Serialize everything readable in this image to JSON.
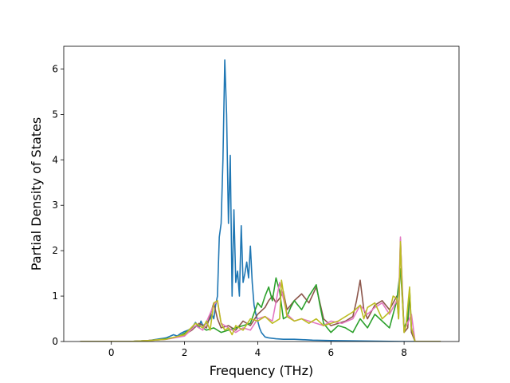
{
  "chart_data": {
    "type": "line",
    "title": "",
    "xlabel": "Frequency (THz)",
    "ylabel": "Partial Density of States",
    "xlim": [
      -1.3,
      9.5
    ],
    "ylim": [
      0,
      6.5
    ],
    "xticks": [
      "0",
      "2",
      "4",
      "6",
      "8"
    ],
    "yticks": [
      "0",
      "1",
      "2",
      "3",
      "4",
      "5",
      "6"
    ],
    "grid": false,
    "legend": "none",
    "series": [
      {
        "color": "#1f77b4",
        "x": [
          -0.85,
          0.5,
          1.0,
          1.5,
          1.7,
          1.8,
          1.9,
          2.0,
          2.1,
          2.2,
          2.3,
          2.4,
          2.45,
          2.5,
          2.6,
          2.7,
          2.75,
          2.8,
          2.85,
          2.9,
          2.95,
          3.0,
          3.05,
          3.1,
          3.15,
          3.2,
          3.25,
          3.3,
          3.35,
          3.4,
          3.45,
          3.5,
          3.55,
          3.6,
          3.65,
          3.7,
          3.75,
          3.8,
          3.85,
          3.9,
          3.95,
          4.0,
          4.05,
          4.1,
          4.15,
          4.2,
          4.3,
          4.5,
          4.7,
          5.0,
          5.5,
          6.0,
          7.0,
          8.0,
          9.0
        ],
        "y": [
          0,
          0,
          0.02,
          0.08,
          0.15,
          0.12,
          0.18,
          0.22,
          0.25,
          0.3,
          0.42,
          0.3,
          0.45,
          0.35,
          0.4,
          0.5,
          0.6,
          0.5,
          0.8,
          1.0,
          2.3,
          2.6,
          4.0,
          6.2,
          5.0,
          2.6,
          4.1,
          1.0,
          2.9,
          1.3,
          1.55,
          1.0,
          2.55,
          1.3,
          1.5,
          1.75,
          1.4,
          2.1,
          1.3,
          0.8,
          0.6,
          0.45,
          0.3,
          0.2,
          0.15,
          0.1,
          0.08,
          0.06,
          0.05,
          0.05,
          0.03,
          0.02,
          0.01,
          0,
          0
        ]
      },
      {
        "color": "#8c564b",
        "x": [
          -0.85,
          0.5,
          1.0,
          1.5,
          1.8,
          2.0,
          2.2,
          2.4,
          2.6,
          2.8,
          2.9,
          3.0,
          3.2,
          3.4,
          3.6,
          3.8,
          4.0,
          4.2,
          4.3,
          4.4,
          4.5,
          4.6,
          4.7,
          4.8,
          5.0,
          5.2,
          5.4,
          5.6,
          5.8,
          6.0,
          6.2,
          6.4,
          6.6,
          6.7,
          6.8,
          6.9,
          7.0,
          7.2,
          7.4,
          7.6,
          7.8,
          7.85,
          7.9,
          7.95,
          8.0,
          8.1,
          8.15,
          8.2,
          8.3,
          9.0
        ],
        "y": [
          0,
          0,
          0.02,
          0.05,
          0.1,
          0.15,
          0.25,
          0.4,
          0.3,
          0.85,
          0.5,
          0.3,
          0.35,
          0.25,
          0.45,
          0.35,
          0.6,
          0.75,
          0.9,
          1.0,
          0.85,
          0.95,
          1.1,
          0.7,
          0.9,
          1.05,
          0.85,
          1.2,
          0.5,
          0.35,
          0.4,
          0.45,
          0.55,
          0.9,
          1.35,
          0.7,
          0.5,
          0.8,
          0.9,
          0.7,
          1.0,
          0.5,
          2.25,
          1.2,
          0.2,
          0.3,
          1.1,
          0.2,
          0,
          0
        ]
      },
      {
        "color": "#2ca02c",
        "x": [
          -0.85,
          0.5,
          1.0,
          1.5,
          1.8,
          2.0,
          2.2,
          2.4,
          2.6,
          2.8,
          3.0,
          3.2,
          3.4,
          3.6,
          3.8,
          4.0,
          4.1,
          4.2,
          4.3,
          4.4,
          4.5,
          4.6,
          4.7,
          4.8,
          4.9,
          5.0,
          5.2,
          5.4,
          5.6,
          5.7,
          5.8,
          6.0,
          6.2,
          6.4,
          6.6,
          6.8,
          7.0,
          7.2,
          7.4,
          7.6,
          7.8,
          7.9,
          8.0,
          8.1,
          8.15,
          8.2,
          8.3,
          9.0
        ],
        "y": [
          0,
          0,
          0.02,
          0.06,
          0.1,
          0.18,
          0.3,
          0.35,
          0.25,
          0.3,
          0.2,
          0.25,
          0.3,
          0.35,
          0.4,
          0.85,
          0.75,
          1.0,
          1.2,
          0.9,
          1.4,
          1.1,
          0.5,
          0.55,
          0.75,
          0.9,
          0.7,
          1.0,
          1.25,
          0.8,
          0.4,
          0.2,
          0.35,
          0.3,
          0.2,
          0.5,
          0.3,
          0.6,
          0.45,
          0.3,
          0.9,
          1.6,
          0.3,
          0.5,
          1.15,
          0.3,
          0,
          0
        ]
      },
      {
        "color": "#e377c2",
        "x": [
          -0.85,
          0.5,
          1.0,
          1.5,
          2.0,
          2.3,
          2.5,
          2.8,
          2.9,
          3.0,
          3.2,
          3.4,
          3.6,
          3.8,
          4.0,
          4.2,
          4.4,
          4.6,
          4.8,
          5.0,
          5.2,
          5.4,
          5.6,
          5.8,
          6.0,
          6.3,
          6.6,
          6.8,
          7.0,
          7.2,
          7.4,
          7.6,
          7.8,
          7.85,
          7.9,
          7.95,
          8.0,
          8.1,
          8.2,
          8.3,
          9.0
        ],
        "y": [
          0,
          0,
          0.02,
          0.05,
          0.12,
          0.35,
          0.25,
          0.8,
          0.9,
          0.4,
          0.3,
          0.2,
          0.3,
          0.25,
          0.5,
          0.55,
          0.45,
          1.3,
          0.6,
          0.45,
          0.5,
          0.45,
          0.4,
          0.35,
          0.45,
          0.4,
          0.5,
          0.8,
          0.6,
          0.75,
          0.85,
          0.6,
          0.9,
          0.8,
          2.3,
          1.0,
          0.25,
          0.4,
          0.6,
          0,
          0
        ]
      },
      {
        "color": "#bcbd22",
        "x": [
          -0.85,
          0.5,
          1.0,
          1.5,
          2.0,
          2.3,
          2.5,
          2.6,
          2.7,
          2.8,
          2.9,
          3.0,
          3.1,
          3.2,
          3.3,
          3.4,
          3.6,
          3.8,
          4.0,
          4.2,
          4.4,
          4.6,
          4.65,
          4.8,
          5.0,
          5.2,
          5.4,
          5.6,
          5.8,
          6.0,
          6.2,
          6.4,
          6.6,
          6.8,
          6.9,
          7.0,
          7.2,
          7.4,
          7.6,
          7.7,
          7.8,
          7.85,
          7.9,
          7.95,
          8.0,
          8.05,
          8.15,
          8.2,
          8.3,
          9.0
        ],
        "y": [
          0,
          0,
          0.02,
          0.05,
          0.15,
          0.4,
          0.3,
          0.45,
          0.25,
          0.85,
          0.9,
          0.4,
          0.25,
          0.3,
          0.15,
          0.35,
          0.25,
          0.5,
          0.45,
          0.55,
          0.4,
          0.5,
          1.35,
          0.55,
          0.45,
          0.5,
          0.4,
          0.5,
          0.35,
          0.4,
          0.45,
          0.55,
          0.65,
          0.8,
          0.5,
          0.75,
          0.85,
          0.5,
          0.65,
          1.0,
          0.95,
          0.5,
          2.2,
          1.0,
          0.2,
          0.35,
          1.2,
          0.3,
          0,
          0
        ]
      }
    ]
  }
}
